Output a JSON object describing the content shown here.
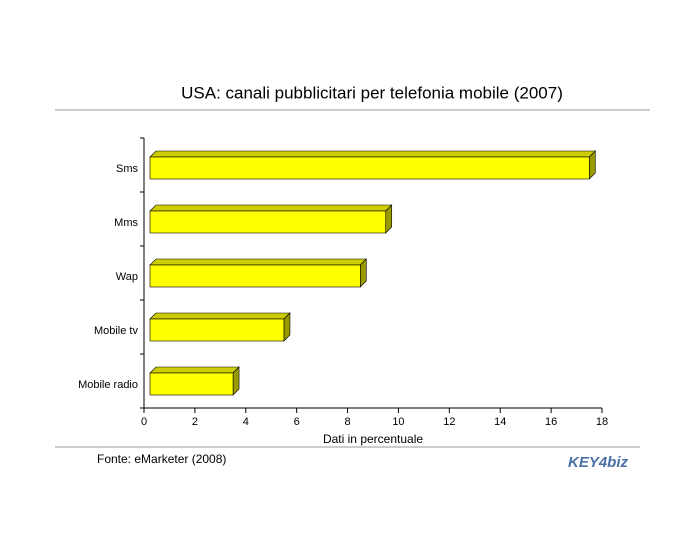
{
  "chart_data": {
    "type": "bar3d",
    "orientation": "horizontal",
    "title": "USA: canali pubblicitari per telefonia mobile (2007)",
    "categories": [
      "Sms",
      "Mms",
      "Wap",
      "Mobile tv",
      "Mobile radio"
    ],
    "values": [
      17.5,
      9.5,
      8.5,
      5.5,
      3.5
    ],
    "color": "#ffff00",
    "xlim": [
      0,
      18
    ],
    "xticks": [
      0,
      2,
      4,
      6,
      8,
      10,
      12,
      14,
      16,
      18
    ],
    "xlabel": "Dati in percentuale",
    "source": "Fonte: eMarketer (2008)",
    "logo": "KEY4biz"
  }
}
